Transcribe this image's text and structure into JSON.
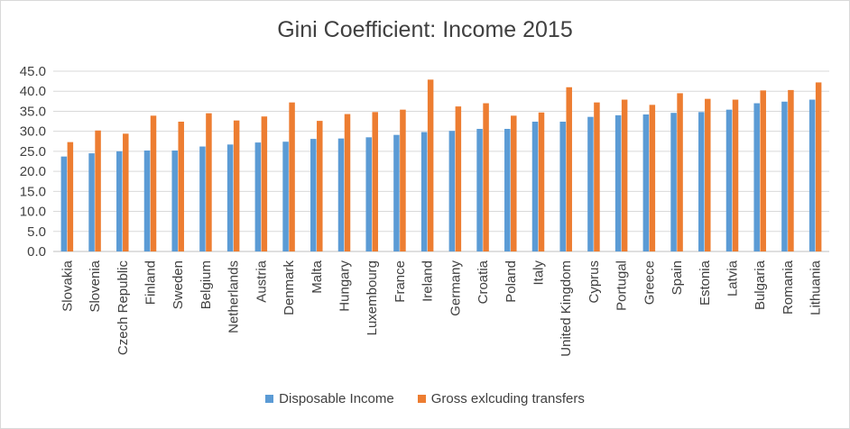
{
  "chart_data": {
    "type": "bar",
    "title": "Gini Coefficient: Income 2015",
    "xlabel": "",
    "ylabel": "",
    "ylim": [
      0,
      45
    ],
    "ytick_step": 5,
    "ytick_labels": [
      "0.0",
      "5.0",
      "10.0",
      "15.0",
      "20.0",
      "25.0",
      "30.0",
      "35.0",
      "40.0",
      "45.0"
    ],
    "grid": true,
    "legend_position": "bottom",
    "categories": [
      "Slovakia",
      "Slovenia",
      "Czech Republic",
      "Finland",
      "Sweden",
      "Belgium",
      "Netherlands",
      "Austria",
      "Denmark",
      "Malta",
      "Hungary",
      "Luxembourg",
      "France",
      "Ireland",
      "Germany",
      "Croatia",
      "Poland",
      "Italy",
      "United Kingdom",
      "Cyprus",
      "Portugal",
      "Greece",
      "Spain",
      "Estonia",
      "Latvia",
      "Bulgaria",
      "Romania",
      "Lithuania"
    ],
    "series": [
      {
        "name": "Disposable Income",
        "color": "#5b9bd5",
        "values": [
          23.7,
          24.5,
          25.0,
          25.2,
          25.2,
          26.2,
          26.7,
          27.2,
          27.4,
          28.1,
          28.2,
          28.5,
          29.1,
          29.8,
          30.1,
          30.6,
          30.6,
          32.4,
          32.4,
          33.6,
          34.0,
          34.2,
          34.6,
          34.8,
          35.4,
          37.0,
          37.4,
          37.9
        ]
      },
      {
        "name": "Gross exlcuding transfers",
        "color": "#ed7d31",
        "values": [
          27.3,
          30.2,
          29.4,
          33.9,
          32.4,
          34.5,
          32.7,
          33.7,
          37.2,
          32.6,
          34.3,
          34.8,
          35.4,
          42.9,
          36.2,
          37.0,
          33.9,
          34.7,
          41.0,
          37.2,
          37.9,
          36.6,
          39.5,
          38.1,
          37.9,
          40.2,
          40.3,
          42.2
        ]
      }
    ]
  }
}
